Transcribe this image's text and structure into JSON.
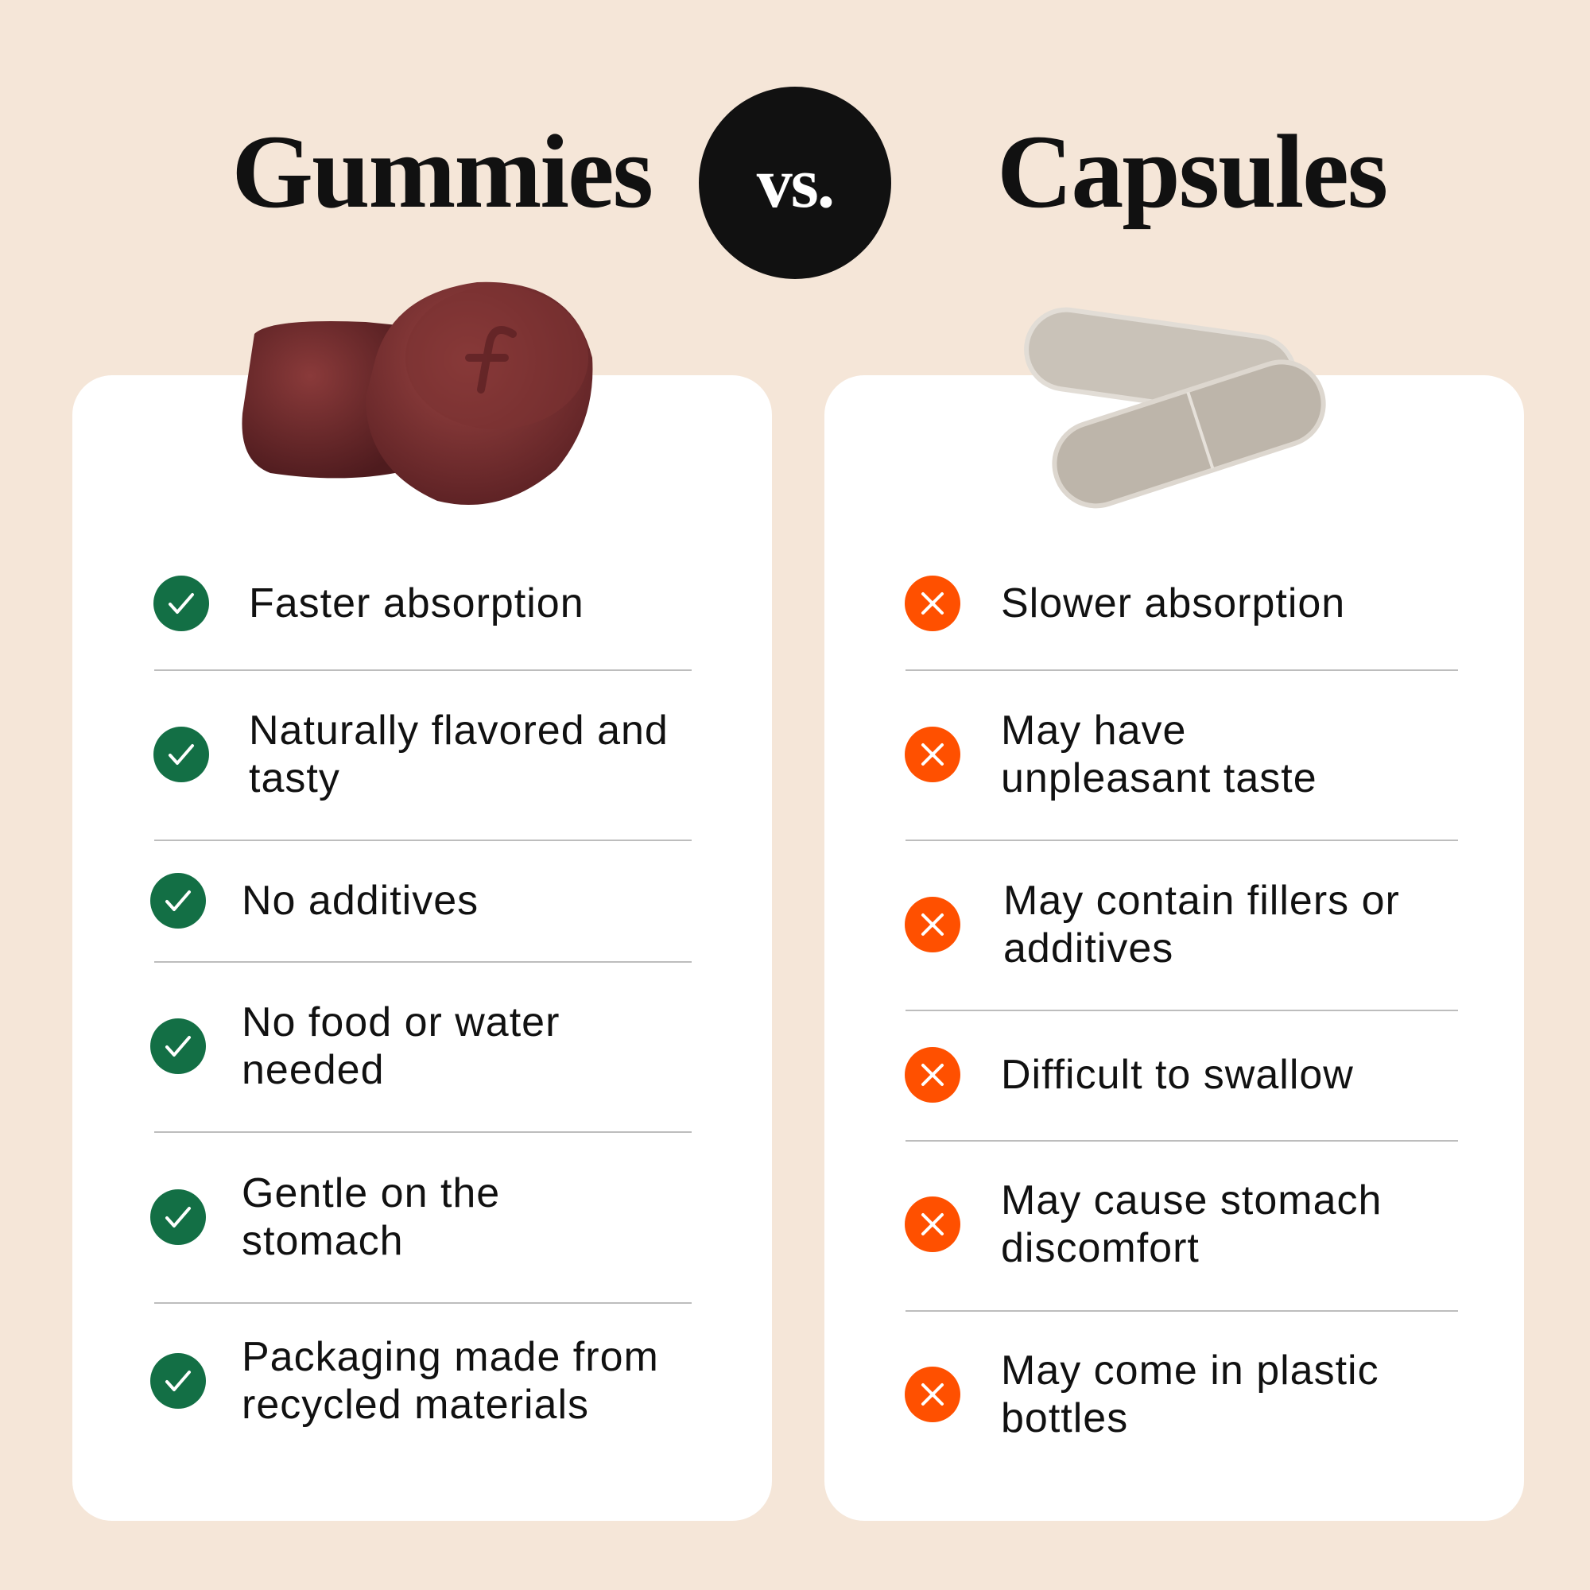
{
  "header": {
    "left_title": "Gummies",
    "vs_label": "vs.",
    "right_title": "Capsules"
  },
  "colors": {
    "background": "#f5e6d8",
    "pro": "#136f45",
    "con": "#ff5000",
    "card": "#ffffff"
  },
  "gummies": {
    "image": "gummy-candies",
    "items": [
      {
        "icon": "check-icon",
        "text": "Faster absorption"
      },
      {
        "icon": "check-icon",
        "text": "Naturally flavored and\ntasty"
      },
      {
        "icon": "check-icon",
        "text": "No additives"
      },
      {
        "icon": "check-icon",
        "text": "No food or water\nneeded"
      },
      {
        "icon": "check-icon",
        "text": "Gentle on the\nstomach"
      },
      {
        "icon": "check-icon",
        "text": "Packaging made from\nrecycled materials"
      }
    ]
  },
  "capsules": {
    "image": "capsule-pills",
    "items": [
      {
        "icon": "x-icon",
        "text": "Slower absorption"
      },
      {
        "icon": "x-icon",
        "text": "May have\nunpleasant taste"
      },
      {
        "icon": "x-icon",
        "text": "May contain fillers or\nadditives"
      },
      {
        "icon": "x-icon",
        "text": "Difficult to swallow"
      },
      {
        "icon": "x-icon",
        "text": "May cause stomach\ndiscomfort"
      },
      {
        "icon": "x-icon",
        "text": "May come in plastic\nbottles"
      }
    ]
  }
}
